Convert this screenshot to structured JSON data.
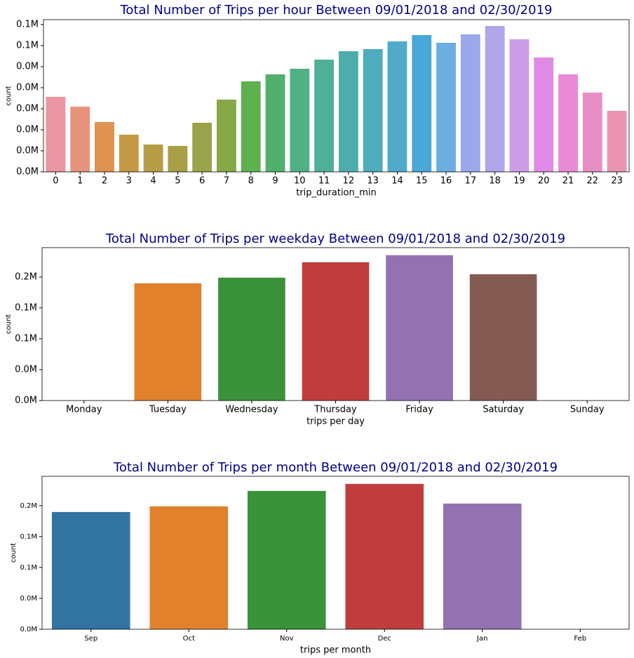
{
  "chart_data": [
    {
      "type": "bar",
      "title": "Total Number of Trips per hour Between 09/01/2018 and 02/30/2019",
      "xlabel": "trip_duration_min",
      "ylabel": "count",
      "categories": [
        "0",
        "1",
        "2",
        "3",
        "4",
        "5",
        "6",
        "7",
        "8",
        "9",
        "10",
        "11",
        "12",
        "13",
        "14",
        "15",
        "16",
        "17",
        "18",
        "19",
        "20",
        "21",
        "22",
        "23"
      ],
      "values": [
        32100,
        27900,
        21300,
        15900,
        11700,
        11100,
        21000,
        30900,
        38700,
        41700,
        44100,
        48000,
        51600,
        52500,
        55800,
        58500,
        55200,
        58800,
        62400,
        56700,
        48900,
        41700,
        33900,
        26100
      ],
      "colors": [
        "#ea96a3",
        "#e8937c",
        "#dd924f",
        "#c69845",
        "#b89d47",
        "#a99f47",
        "#9aa34a",
        "#86a846",
        "#5db14f",
        "#51b06c",
        "#50b183",
        "#4fb098",
        "#4caeaa",
        "#4eacbc",
        "#50abca",
        "#48a8d8",
        "#6caee0",
        "#9aa9ea",
        "#b2a6ea",
        "#cb9de8",
        "#e08ae8",
        "#e88ad6",
        "#e98ec4",
        "#ea94b2"
      ],
      "ylim": [
        0,
        65100
      ],
      "yticks": [
        {
          "value": 0,
          "label": "0.0M"
        },
        {
          "value": 9000,
          "label": "0.0M"
        },
        {
          "value": 18000,
          "label": "0.0M"
        },
        {
          "value": 27000,
          "label": "0.0M"
        },
        {
          "value": 36000,
          "label": "0.0M"
        },
        {
          "value": 45000,
          "label": "0.0M"
        },
        {
          "value": 54000,
          "label": "0.1M"
        },
        {
          "value": 63000,
          "label": "0.1M"
        }
      ]
    },
    {
      "type": "bar",
      "title": "Total Number of Trips per weekday Between 09/01/2018 and 02/30/2019",
      "xlabel": "trips per day",
      "ylabel": "count",
      "categories": [
        "Monday",
        "Tuesday",
        "Wednesday",
        "Thursday",
        "Friday",
        "Saturday",
        "Sunday"
      ],
      "values": [
        0,
        151800,
        159100,
        179100,
        188200,
        163600,
        0
      ],
      "colors": [
        "#3274a1",
        "#e1812c",
        "#3a923a",
        "#c03d3e",
        "#9372b2",
        "#845b53",
        "#d684bd"
      ],
      "ylim": [
        0,
        198000
      ],
      "yticks": [
        {
          "value": 0,
          "label": "0.0M"
        },
        {
          "value": 40000,
          "label": "0.0M"
        },
        {
          "value": 80000,
          "label": "0.1M"
        },
        {
          "value": 120000,
          "label": "0.1M"
        },
        {
          "value": 160000,
          "label": "0.2M"
        }
      ]
    },
    {
      "type": "bar",
      "title": "Total Number of Trips per month Between 09/01/2018 and 02/30/2019",
      "xlabel": "trips per month",
      "ylabel": "count",
      "categories": [
        "Sep",
        "Oct",
        "Nov",
        "Dec",
        "Jan",
        "Feb"
      ],
      "values": [
        151800,
        159100,
        179100,
        188200,
        162700,
        0
      ],
      "colors": [
        "#3274a1",
        "#e1812c",
        "#3a923a",
        "#c03d3e",
        "#9372b2",
        "#845b53"
      ],
      "ylim": [
        0,
        198000
      ],
      "yticks": [
        {
          "value": 0,
          "label": "0.0M"
        },
        {
          "value": 40000,
          "label": "0.0M"
        },
        {
          "value": 80000,
          "label": "0.1M"
        },
        {
          "value": 120000,
          "label": "0.1M"
        },
        {
          "value": 160000,
          "label": "0.2M"
        }
      ]
    }
  ]
}
